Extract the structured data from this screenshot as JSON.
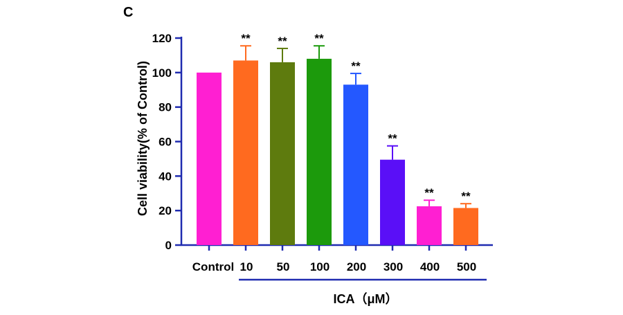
{
  "panel_label": "C",
  "chart_data": {
    "type": "bar",
    "title": "",
    "categories": [
      "Control",
      "10",
      "50",
      "100",
      "200",
      "300",
      "400",
      "500"
    ],
    "values": [
      100,
      107,
      106,
      108,
      93,
      49.5,
      22.5,
      21.5
    ],
    "errors": [
      0,
      8.5,
      8,
      7.5,
      6.5,
      8,
      3.5,
      2.5
    ],
    "significance": [
      "",
      "**",
      "**",
      "**",
      "**",
      "**",
      "**",
      "**"
    ],
    "colors": [
      "#ff1fd2",
      "#ff6a1f",
      "#5e7b0e",
      "#1c9a0c",
      "#2458ff",
      "#5a0ff7",
      "#ff1fd2",
      "#ff6a1f"
    ],
    "ylabel": "Cell viability(% of Control)",
    "xlabel": "ICA（μM）",
    "ylim": [
      0,
      120
    ],
    "yticks": [
      0,
      20,
      40,
      60,
      80,
      100,
      120
    ],
    "tick_labels": [
      "0",
      "20",
      "40",
      "60",
      "80",
      "100",
      "120"
    ],
    "axis_color": "#1f2bb0",
    "grid": false
  }
}
